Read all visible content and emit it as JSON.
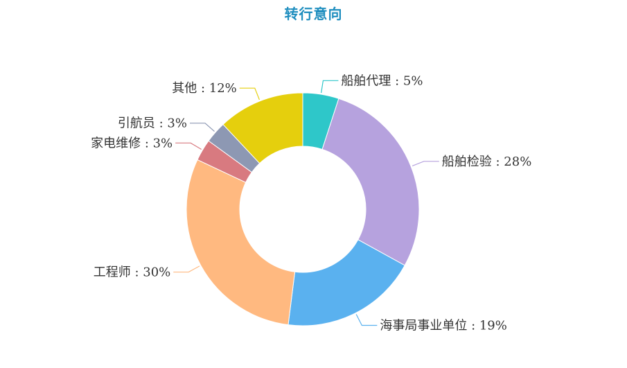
{
  "chart_data": {
    "type": "pie",
    "title": "转行意向",
    "donut": true,
    "legend": "none",
    "slices": [
      {
        "name": "船舶代理",
        "value": 5,
        "label": "船舶代理 : 5%",
        "color": "#2ec7c9"
      },
      {
        "name": "船舶检验",
        "value": 28,
        "label": "船舶检验 : 28%",
        "color": "#b6a2de"
      },
      {
        "name": "海事局事业单位",
        "value": 19,
        "label": "海事局事业单位 : 19%",
        "color": "#5ab1ef"
      },
      {
        "name": "工程师",
        "value": 30,
        "label": "工程师 : 30%",
        "color": "#ffb980"
      },
      {
        "name": "家电维修",
        "value": 3,
        "label": "家电维修 : 3%",
        "color": "#d87a80"
      },
      {
        "name": "引航员",
        "value": 3,
        "label": "引航员 : 3%",
        "color": "#8d98b3"
      },
      {
        "name": "其他",
        "value": 12,
        "label": "其他 : 12%",
        "color": "#e5cf0d"
      }
    ]
  }
}
